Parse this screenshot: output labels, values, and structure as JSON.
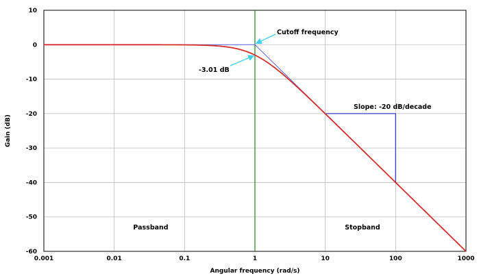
{
  "chart_data": {
    "type": "line",
    "title": "",
    "xlabel": "Angular frequency (rad/s)",
    "ylabel": "Gain (dB)",
    "x_scale": "log",
    "xlim": [
      0.001,
      1000
    ],
    "ylim": [
      -60,
      10
    ],
    "x_ticks": [
      0.001,
      0.01,
      0.1,
      1,
      10,
      100,
      1000
    ],
    "x_tick_labels": [
      "0.001",
      "0.01",
      "0.1",
      "1",
      "10",
      "100",
      "1000"
    ],
    "y_ticks": [
      10,
      0,
      -10,
      -20,
      -30,
      -40,
      -50,
      -60
    ],
    "y_tick_labels": [
      "10",
      "0",
      "-10",
      "-20",
      "-30",
      "-40",
      "-50",
      "-60"
    ],
    "grid": true,
    "series": [
      {
        "kind": "frequency-response",
        "color": "#d62d2d",
        "x": [
          0.001,
          0.01,
          0.1,
          0.2,
          0.3,
          0.5,
          0.7,
          1,
          1.5,
          2,
          3,
          5,
          7,
          10,
          20,
          50,
          100,
          200,
          500,
          1000
        ],
        "y": [
          0,
          0,
          -0.04,
          -0.17,
          -0.37,
          -0.97,
          -1.73,
          -3.01,
          -5.12,
          -6.99,
          -10.0,
          -14.15,
          -17.03,
          -20.04,
          -26.03,
          -33.98,
          -40.0,
          -46.02,
          -53.98,
          -60.0
        ]
      },
      {
        "kind": "asymptote",
        "color": "#5a64d8",
        "x": [
          0.001,
          1,
          1000
        ],
        "y": [
          0,
          0,
          -60
        ]
      }
    ],
    "cutoff_line": {
      "x": 1,
      "color": "#2e8b2e"
    },
    "slope_triangle": {
      "x_from": 10,
      "x_to": 100,
      "y_top": -20,
      "y_bottom": -40,
      "color": "#3a43c8"
    },
    "annotations": {
      "cutoff": "Cutoff frequency",
      "minus3db": "-3.01 dB",
      "slope": "Slope: -20 dB/decade",
      "passband": "Passband",
      "stopband": "Stopband"
    },
    "arrow_color": "#3fd0ee"
  }
}
